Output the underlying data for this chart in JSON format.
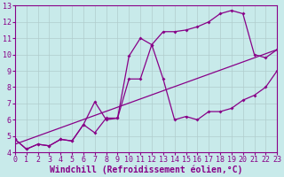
{
  "bg_color": "#c8eaea",
  "grid_color": "#b0cccc",
  "line_color": "#880088",
  "xlim": [
    0,
    23
  ],
  "ylim": [
    4,
    13
  ],
  "xticks": [
    0,
    1,
    2,
    3,
    4,
    5,
    6,
    7,
    8,
    9,
    10,
    11,
    12,
    13,
    14,
    15,
    16,
    17,
    18,
    19,
    20,
    21,
    22,
    23
  ],
  "yticks": [
    4,
    5,
    6,
    7,
    8,
    9,
    10,
    11,
    12,
    13
  ],
  "xlabel": "Windchill (Refroidissement éolien,°C)",
  "line1_x": [
    0,
    1,
    2,
    3,
    4,
    5,
    6,
    7,
    8,
    9,
    10,
    11,
    12,
    13,
    14,
    15,
    16,
    17,
    18,
    19,
    20,
    21,
    22,
    23
  ],
  "line1_y": [
    4.8,
    4.2,
    4.5,
    4.4,
    4.8,
    4.7,
    5.7,
    5.2,
    6.1,
    6.1,
    8.5,
    8.5,
    10.6,
    11.4,
    11.4,
    11.5,
    11.7,
    12.0,
    12.5,
    12.7,
    12.5,
    10.0,
    9.8,
    10.3
  ],
  "line2_x": [
    0,
    1,
    2,
    3,
    4,
    5,
    6,
    7,
    8,
    9,
    10,
    11,
    12,
    13,
    14,
    15,
    16,
    17,
    18,
    19,
    20,
    21,
    22,
    23
  ],
  "line2_y": [
    4.8,
    4.2,
    4.5,
    4.4,
    4.8,
    4.7,
    5.7,
    7.1,
    6.0,
    6.1,
    9.9,
    11.0,
    10.6,
    8.5,
    6.0,
    6.2,
    6.0,
    6.5,
    6.5,
    6.7,
    7.2,
    7.5,
    8.0,
    9.0
  ],
  "line3_x": [
    0,
    23
  ],
  "line3_y": [
    4.5,
    10.3
  ],
  "marker": "D",
  "marker_size": 2.0,
  "lw": 0.9,
  "font_size": 7,
  "tick_font_size": 6
}
